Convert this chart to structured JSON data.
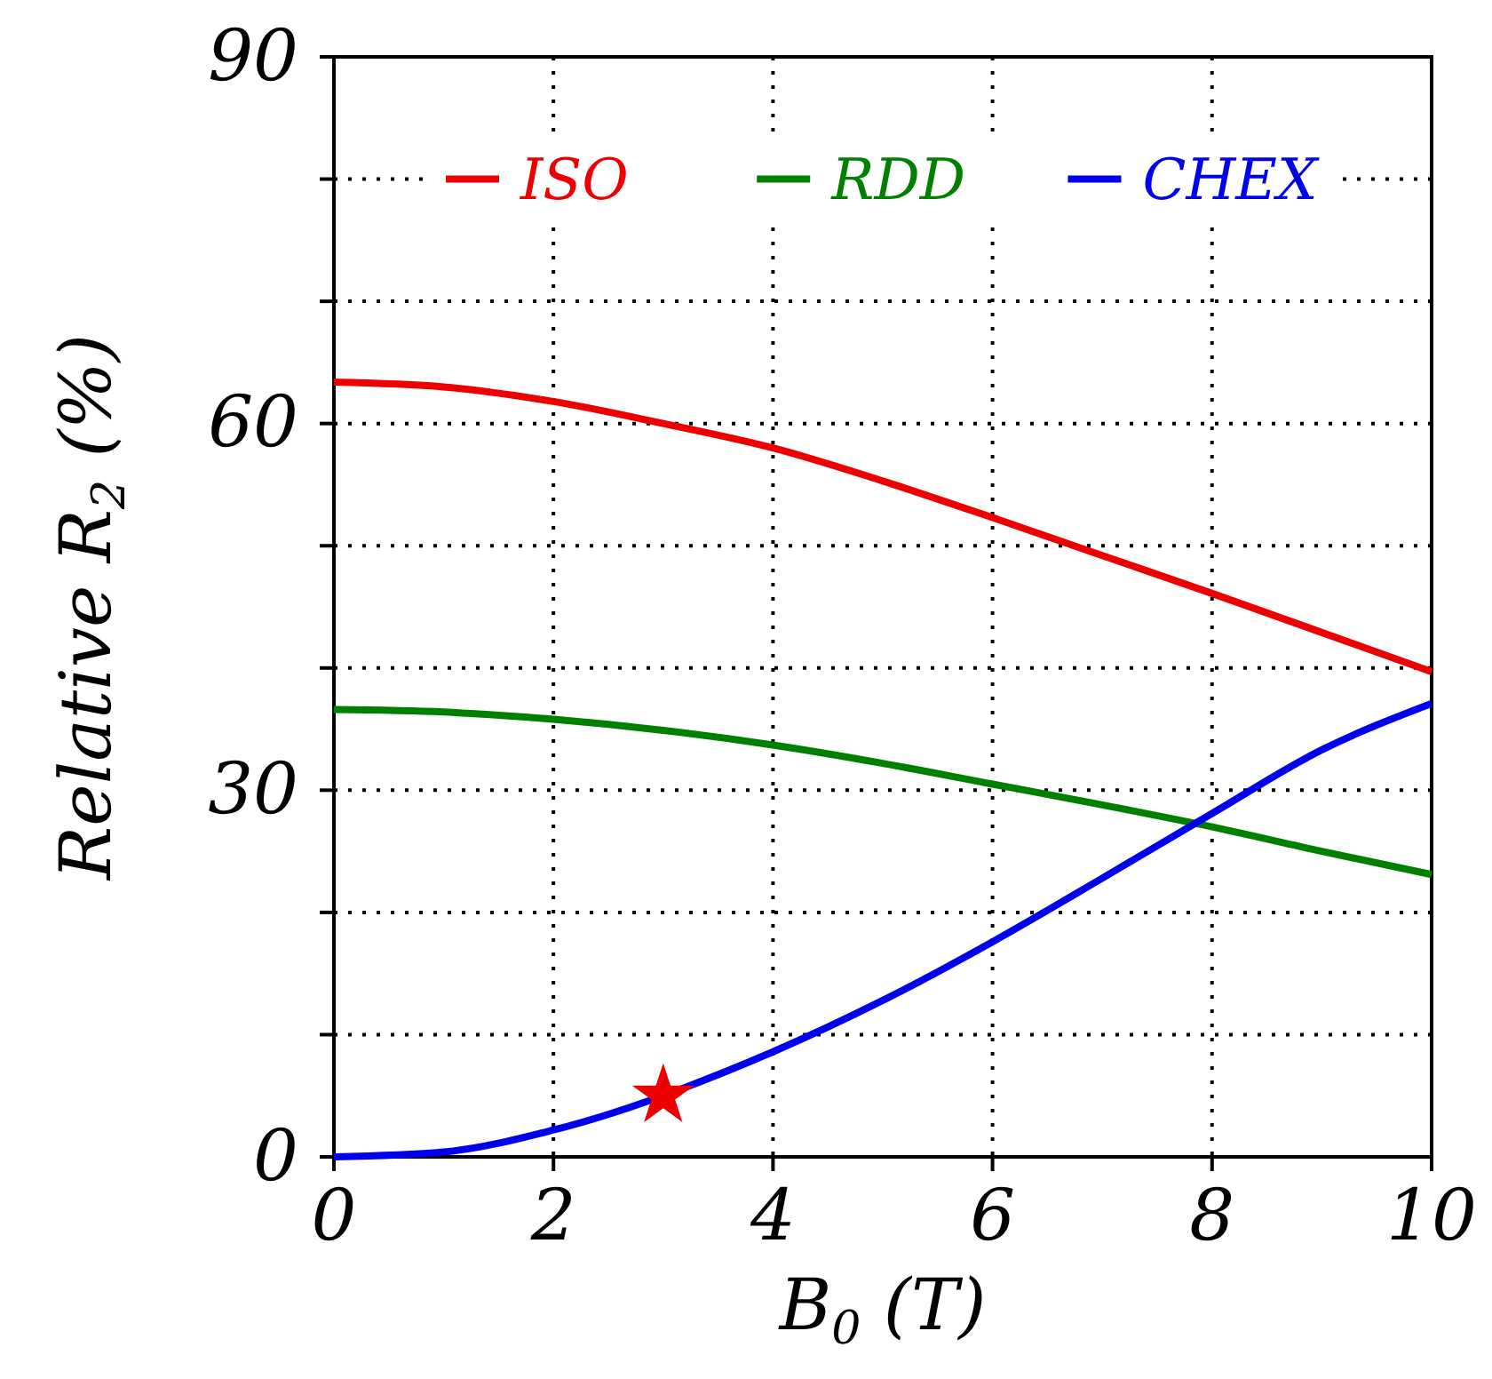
{
  "chart_data": {
    "type": "line",
    "xlabel": "B$_{0}$ (T)",
    "ylabel": "Relative R$_{2}$  (%)",
    "xlim": [
      0,
      10
    ],
    "xticks": [
      0,
      2,
      4,
      6,
      8,
      10
    ],
    "ylim": [
      0,
      90
    ],
    "yticks": [
      0,
      {
        "value": 10,
        "label": null
      },
      {
        "value": 20,
        "label": null
      },
      30,
      {
        "value": 40,
        "label": null
      },
      {
        "value": 50,
        "label": null
      },
      60,
      {
        "value": 70,
        "label": null
      },
      {
        "value": 80,
        "label": null
      },
      90
    ],
    "grid": true,
    "legend": "top",
    "line_style": "solid",
    "series": [
      {
        "name": "ISO",
        "color": "#ee0000",
        "x": [
          0,
          1,
          2,
          3,
          4,
          5,
          6,
          7,
          8,
          9,
          10
        ],
        "values": [
          63.4,
          63.0,
          61.8,
          60.0,
          58.0,
          55.3,
          52.3,
          49.2,
          46.1,
          42.9,
          39.7
        ]
      },
      {
        "name": "RDD",
        "color": "#008000",
        "x": [
          0,
          1,
          2,
          3,
          4,
          5,
          6,
          7,
          8,
          9,
          10
        ],
        "values": [
          36.6,
          36.4,
          35.8,
          34.9,
          33.7,
          32.2,
          30.5,
          28.8,
          27.0,
          25.0,
          23.1
        ]
      },
      {
        "name": "CHEX",
        "color": "#0000ee",
        "x": [
          0,
          1,
          2,
          4,
          5,
          6,
          7,
          8,
          9,
          10
        ],
        "values": [
          0,
          0.4,
          2.2,
          8.6,
          12.8,
          17.6,
          22.8,
          28.1,
          33.3,
          37.1
        ]
      },
      {
        "type": "scatter",
        "marker": "star",
        "color": "#ee0000",
        "x": [
          3
        ],
        "values": [
          5
        ]
      }
    ]
  }
}
